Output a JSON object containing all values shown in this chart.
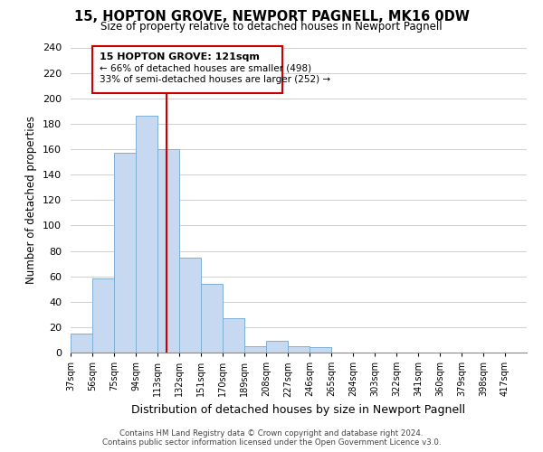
{
  "title": "15, HOPTON GROVE, NEWPORT PAGNELL, MK16 0DW",
  "subtitle": "Size of property relative to detached houses in Newport Pagnell",
  "xlabel": "Distribution of detached houses by size in Newport Pagnell",
  "ylabel": "Number of detached properties",
  "bin_labels": [
    "37sqm",
    "56sqm",
    "75sqm",
    "94sqm",
    "113sqm",
    "132sqm",
    "151sqm",
    "170sqm",
    "189sqm",
    "208sqm",
    "227sqm",
    "246sqm",
    "265sqm",
    "284sqm",
    "303sqm",
    "322sqm",
    "341sqm",
    "360sqm",
    "379sqm",
    "398sqm",
    "417sqm"
  ],
  "bin_edges": [
    37,
    56,
    75,
    94,
    113,
    132,
    151,
    170,
    189,
    208,
    227,
    246,
    265,
    284,
    303,
    322,
    341,
    360,
    379,
    398,
    417
  ],
  "bar_heights": [
    15,
    58,
    157,
    186,
    160,
    75,
    54,
    27,
    5,
    9,
    5,
    4,
    0,
    0,
    0,
    0,
    0,
    0,
    0,
    0
  ],
  "bar_color": "#c6d9f0",
  "bar_edge_color": "#7fafd4",
  "property_line_x": 121,
  "property_line_color": "#cc0000",
  "annotation_title": "15 HOPTON GROVE: 121sqm",
  "annotation_line1": "← 66% of detached houses are smaller (498)",
  "annotation_line2": "33% of semi-detached houses are larger (252) →",
  "annotation_box_color": "#ffffff",
  "annotation_box_edge_color": "#cc0000",
  "ylim": [
    0,
    240
  ],
  "yticks": [
    0,
    20,
    40,
    60,
    80,
    100,
    120,
    140,
    160,
    180,
    200,
    220,
    240
  ],
  "footer_line1": "Contains HM Land Registry data © Crown copyright and database right 2024.",
  "footer_line2": "Contains public sector information licensed under the Open Government Licence v3.0.",
  "background_color": "#ffffff",
  "grid_color": "#c8c8c8"
}
